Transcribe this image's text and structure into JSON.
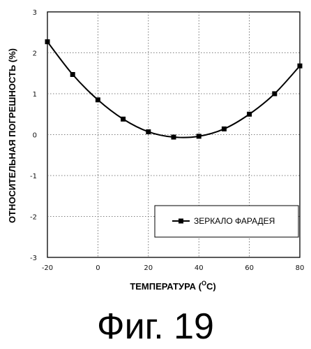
{
  "chart_data": {
    "type": "line",
    "xlabel": "ТЕМПЕРАТУРА (°C)",
    "xlabel_main": "ТЕМПЕРАТУРА (",
    "xlabel_unit_sup": "O",
    "xlabel_unit": "C)",
    "ylabel": "ОТНОСИТЕЛЬНАЯ ПОГРЕШНОСТЬ (%)",
    "xlim": [
      -20,
      80
    ],
    "ylim": [
      -3,
      3
    ],
    "xticks": [
      -20,
      0,
      20,
      40,
      60,
      80
    ],
    "yticks": [
      -3,
      -2,
      -1,
      0,
      1,
      2,
      3
    ],
    "grid": true,
    "legend_position": "lower-right",
    "series": [
      {
        "name": "ЗЕРКАЛО ФАРАДЕЯ",
        "marker": "square",
        "x": [
          -20,
          -10,
          0,
          10,
          20,
          30,
          40,
          50,
          60,
          70,
          80
        ],
        "y": [
          2.27,
          1.47,
          0.85,
          0.38,
          0.07,
          -0.06,
          -0.04,
          0.14,
          0.5,
          1.0,
          1.68
        ]
      }
    ]
  },
  "caption": "Фиг. 19"
}
